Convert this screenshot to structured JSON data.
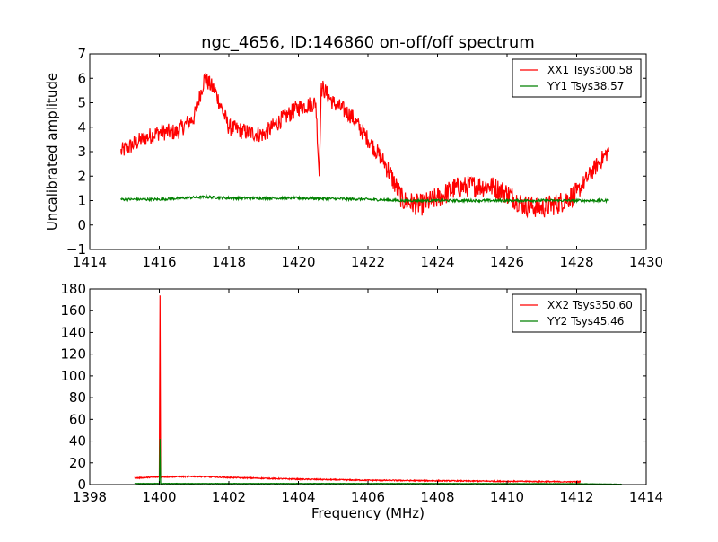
{
  "chart_data": [
    {
      "type": "line",
      "title": "ngc_4656, ID:146860 on-off/off spectrum",
      "xlabel": "",
      "ylabel": "Uncalibrated amplitude",
      "xlim": [
        1414,
        1430
      ],
      "ylim": [
        -1,
        7
      ],
      "xticks": [
        "1414",
        "1416",
        "1418",
        "1420",
        "1422",
        "1424",
        "1426",
        "1428",
        "1430"
      ],
      "yticks": [
        "−1",
        "0",
        "1",
        "2",
        "3",
        "4",
        "5",
        "6",
        "7"
      ],
      "legend": "top-right",
      "noise": 0.35,
      "series": [
        {
          "name": "XX1 Tsys300.58",
          "color": "#ff0000",
          "x": [
            1414.9,
            1415.5,
            1416,
            1416.5,
            1417,
            1417.3,
            1417.6,
            1418,
            1418.5,
            1419,
            1419.5,
            1420,
            1420.5,
            1420.6,
            1420.65,
            1420.7,
            1421,
            1421.5,
            1422,
            1422.5,
            1423,
            1423.5,
            1424,
            1424.5,
            1425,
            1425.5,
            1426,
            1426.5,
            1427,
            1427.5,
            1428,
            1428.5,
            1428.9
          ],
          "y": [
            3.0,
            3.5,
            3.8,
            3.8,
            4.4,
            6.0,
            5.5,
            4.0,
            3.8,
            3.7,
            4.3,
            4.8,
            5.0,
            2.0,
            5.5,
            5.6,
            5.0,
            4.5,
            3.5,
            2.5,
            1.0,
            0.8,
            1.1,
            1.5,
            1.6,
            1.6,
            1.3,
            0.8,
            0.7,
            0.9,
            1.3,
            2.3,
            3.0
          ]
        },
        {
          "name": "YY1 Tsys38.57",
          "color": "#008000",
          "noise_scale": 0.15,
          "x": [
            1414.9,
            1416,
            1417.3,
            1418,
            1420,
            1422,
            1423,
            1426,
            1428.9
          ],
          "y": [
            1.05,
            1.05,
            1.15,
            1.1,
            1.1,
            1.05,
            1.0,
            1.0,
            1.0
          ]
        }
      ]
    },
    {
      "type": "line",
      "title": "",
      "xlabel": "Frequency (MHz)",
      "ylabel": "",
      "xlim": [
        1398,
        1414
      ],
      "ylim": [
        0,
        180
      ],
      "xticks": [
        "1398",
        "1400",
        "1402",
        "1404",
        "1406",
        "1408",
        "1410",
        "1412",
        "1414"
      ],
      "yticks": [
        "0",
        "20",
        "40",
        "60",
        "80",
        "100",
        "120",
        "140",
        "160",
        "180"
      ],
      "legend": "top-right",
      "noise": 0.5,
      "series": [
        {
          "name": "XX2 Tsys350.60",
          "color": "#ff0000",
          "x": [
            1399.3,
            1399.98,
            1400.0,
            1400.02,
            1400.04,
            1401,
            1402,
            1404,
            1406,
            1408,
            1410,
            1412.1
          ],
          "y": [
            6,
            7,
            7,
            174,
            7,
            7.5,
            6.5,
            5,
            4,
            3.5,
            3,
            2.5
          ]
        },
        {
          "name": "YY2 Tsys45.46",
          "color": "#008000",
          "noise_scale": 0.3,
          "x": [
            1399.3,
            1399.98,
            1400.0,
            1400.02,
            1400.04,
            1404,
            1408,
            1412,
            1413.3
          ],
          "y": [
            1,
            1,
            1,
            42,
            1,
            1,
            1,
            0.8,
            0.3
          ]
        }
      ]
    }
  ]
}
